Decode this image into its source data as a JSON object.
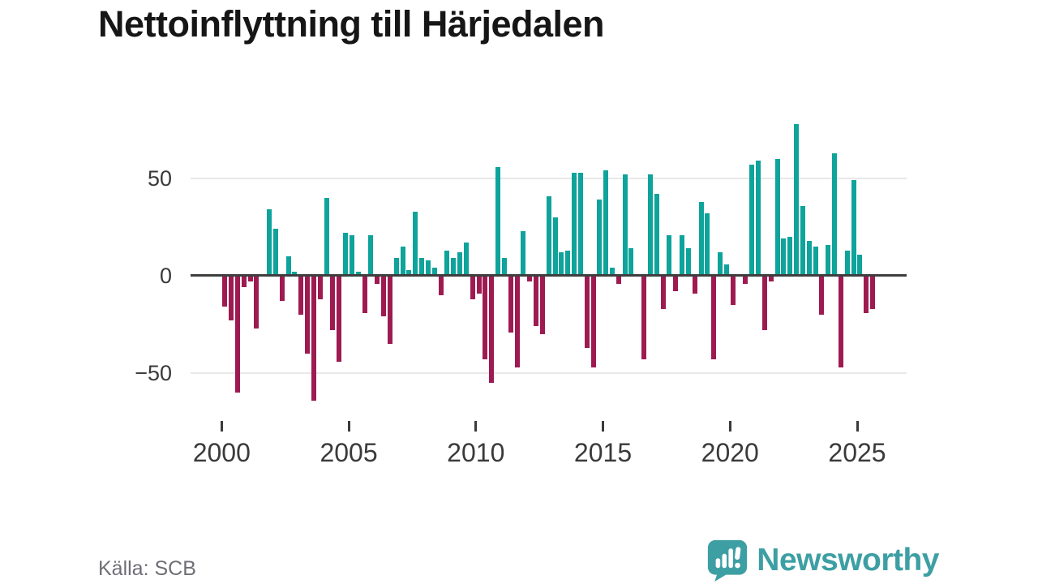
{
  "title": "Nettoinflyttning till Härjedalen",
  "source_note": "Källa: SCB",
  "branding": {
    "logo_text": "Newsworthy",
    "logo_icon": "speech-bubble-bar-chart-icon",
    "brand_color": "#3d9fa3"
  },
  "colors": {
    "positive_bar": "#0ea39b",
    "negative_bar": "#9e1b51",
    "gridline": "#e8e8e8",
    "zero_line": "#3e3e3e",
    "axis_text": "#3a3a3a",
    "title_text": "#161616",
    "source_text": "#6f6e76"
  },
  "chart_data": {
    "type": "bar",
    "title": "Nettoinflyttning till Härjedalen",
    "period": "quarterly",
    "x_start": "2000-Q1",
    "x_end": "2025-Q3",
    "x_tick_labels": [
      "2000",
      "2005",
      "2010",
      "2015",
      "2020",
      "2025"
    ],
    "y_ticks": [
      50,
      0,
      -50
    ],
    "y_tick_labels": [
      "50",
      "0",
      "−50"
    ],
    "ylim": [
      -70,
      83
    ],
    "grid": "horizontal-only",
    "legend": "none",
    "series": [
      {
        "name": "Nettoinflyttning",
        "values": [
          -16,
          -23,
          -60,
          -6,
          -3,
          -27,
          0,
          34,
          24,
          -13,
          10,
          2,
          -20,
          -40,
          -64,
          -12,
          40,
          -28,
          -44,
          22,
          21,
          2,
          -19,
          21,
          -4,
          -21,
          -35,
          9,
          15,
          3,
          33,
          9,
          8,
          4,
          -10,
          13,
          9,
          12,
          17,
          -12,
          -9,
          -43,
          -55,
          56,
          9,
          -29,
          -47,
          23,
          -3,
          -26,
          -30,
          41,
          30,
          12,
          13,
          53,
          53,
          -37,
          -47,
          39,
          54,
          4,
          -4,
          52,
          14,
          0,
          -43,
          52,
          42,
          -17,
          21,
          -8,
          21,
          14,
          -9,
          38,
          32,
          -43,
          12,
          6,
          -15,
          0,
          -4,
          57,
          59,
          -28,
          -3,
          60,
          19,
          20,
          78,
          36,
          18,
          15,
          -20,
          16,
          63,
          -47,
          13,
          49,
          11,
          -19,
          -17
        ]
      }
    ]
  }
}
